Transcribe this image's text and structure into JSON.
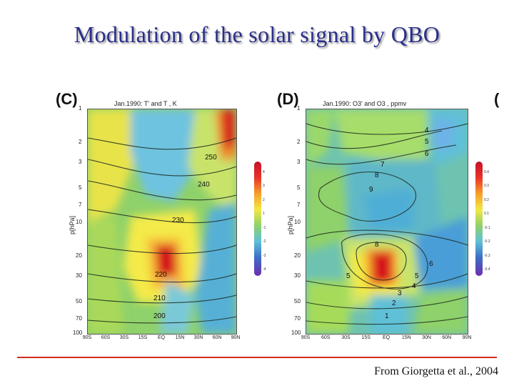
{
  "title": "Modulation of the solar signal by QBO",
  "panels": [
    {
      "label": "(C)",
      "caption": "Jan.1990: T' and T , K",
      "y_axis_label": "p[hPa]",
      "contour_labels": [
        "250",
        "240",
        "230",
        "220",
        "210",
        "200"
      ]
    },
    {
      "label": "(D)",
      "caption": "Jan.1990: O3' and O3 , ppmv",
      "y_axis_label": "p[hPa]",
      "contour_labels": [
        "4",
        "5",
        "6",
        "7",
        "8",
        "9",
        "8",
        "7",
        "6",
        "5",
        "4",
        "3",
        "2",
        "1"
      ]
    }
  ],
  "y_ticks": [
    "1",
    "2",
    "3",
    "5",
    "7",
    "10",
    "20",
    "30",
    "50",
    "70",
    "100"
  ],
  "x_ticks": [
    "90S",
    "60S",
    "30S",
    "15S",
    "EQ",
    "15N",
    "30N",
    "60N",
    "90N"
  ],
  "colorbar_c_ticks": [
    "4",
    "3",
    "2",
    "1",
    "-1",
    "-2",
    "-3",
    "-4"
  ],
  "colorbar_d_ticks": [
    "0.4",
    "0.3",
    "0.2",
    "0.1",
    "-0.1",
    "-0.2",
    "-0.3",
    "-0.4"
  ],
  "partial_label": "(",
  "source": "From Giorgetta et al., 2004"
}
